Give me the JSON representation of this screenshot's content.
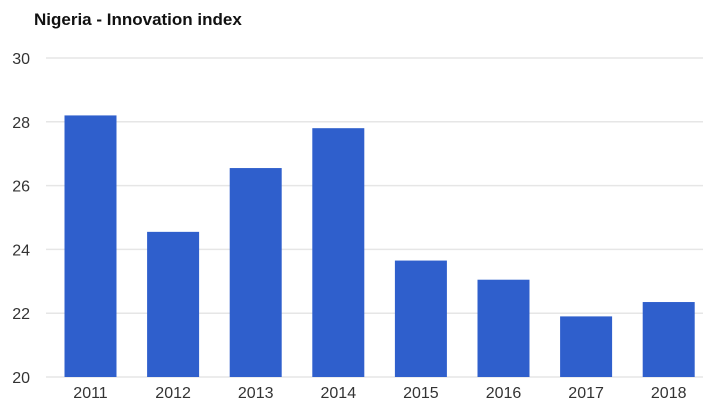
{
  "chart_data": {
    "type": "bar",
    "title": "Nigeria - Innovation index",
    "categories": [
      "2011",
      "2012",
      "2013",
      "2014",
      "2015",
      "2016",
      "2017",
      "2018"
    ],
    "values": [
      28.2,
      24.55,
      26.55,
      27.8,
      23.65,
      23.05,
      21.9,
      22.35
    ],
    "ylim": [
      20,
      30
    ],
    "yticks": [
      20,
      22,
      24,
      26,
      28,
      30
    ],
    "grid": true,
    "bar_color": "#2f5fcc",
    "grid_color": "#e6e6e6"
  }
}
